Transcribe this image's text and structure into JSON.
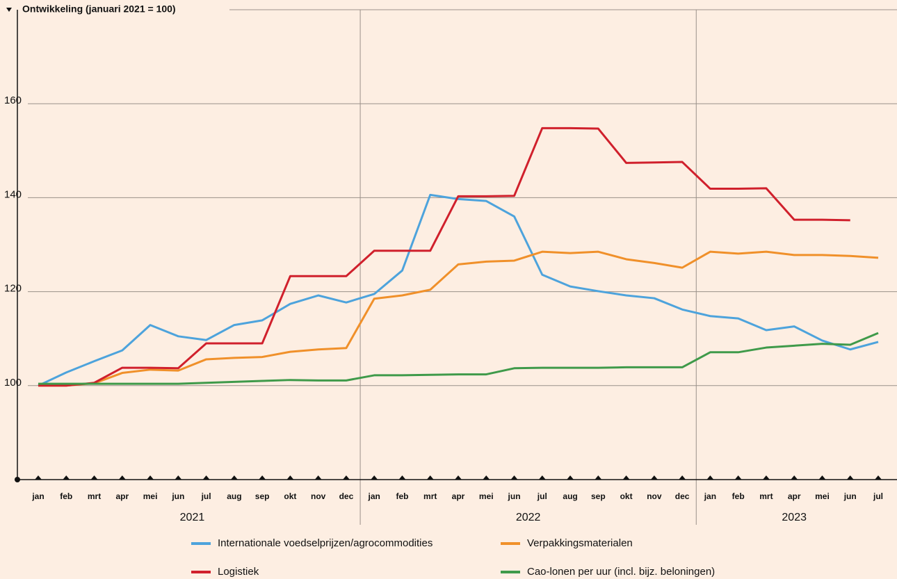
{
  "chart_data": {
    "type": "line",
    "title": "Ontwikkeling (januari 2021 = 100)",
    "categories": [
      "jan",
      "feb",
      "mrt",
      "apr",
      "mei",
      "jun",
      "jul",
      "aug",
      "sep",
      "okt",
      "nov",
      "dec",
      "jan",
      "feb",
      "mrt",
      "apr",
      "mei",
      "jun",
      "jul",
      "aug",
      "sep",
      "okt",
      "nov",
      "dec",
      "jan",
      "feb",
      "mrt",
      "apr",
      "mei",
      "jun",
      "jul"
    ],
    "years": [
      "2021",
      "2022",
      "2023"
    ],
    "ylim": [
      80,
      180
    ],
    "yticks": [
      100,
      120,
      140,
      160
    ],
    "grid": true,
    "series": [
      {
        "name": "Internationale voedselprijzen/agrocommodities",
        "color": "#4da3dc",
        "values": [
          100,
          102.8,
          105.2,
          107.5,
          112.9,
          110.5,
          109.7,
          112.9,
          113.9,
          117.4,
          119.2,
          117.7,
          119.5,
          124.5,
          140.6,
          139.7,
          139.3,
          136,
          123.6,
          121.1,
          120.1,
          119.2,
          118.6,
          116.2,
          114.8,
          114.3,
          111.8,
          112.6,
          109.6,
          107.7,
          109.3
        ]
      },
      {
        "name": "Verpakkingsmaterialen",
        "color": "#f0902a",
        "values": [
          100,
          100,
          100.5,
          102.7,
          103.4,
          103.2,
          105.6,
          105.9,
          106.1,
          107.2,
          107.7,
          108,
          118.5,
          119.2,
          120.4,
          125.8,
          126.4,
          126.6,
          128.5,
          128.2,
          128.5,
          126.9,
          126.1,
          125.1,
          128.5,
          128.1,
          128.5,
          127.8,
          127.8,
          127.6,
          127.2
        ]
      },
      {
        "name": "Logistiek",
        "color": "#d0202c",
        "values": [
          100,
          100,
          100.6,
          103.8,
          103.8,
          103.7,
          109,
          109,
          109,
          123.3,
          123.3,
          123.3,
          128.7,
          128.7,
          128.7,
          140.3,
          140.3,
          140.4,
          154.8,
          154.8,
          154.7,
          147.4,
          147.5,
          147.6,
          141.9,
          141.9,
          142,
          135.3,
          135.3,
          135.2,
          null
        ]
      },
      {
        "name": "Cao-lonen per uur (incl. bijz. beloningen)",
        "color": "#3f9a4a",
        "values": [
          100.4,
          100.4,
          100.4,
          100.4,
          100.4,
          100.4,
          100.6,
          100.8,
          101,
          101.2,
          101.1,
          101.1,
          102.2,
          102.2,
          102.3,
          102.4,
          102.4,
          103.7,
          103.8,
          103.8,
          103.8,
          103.9,
          103.9,
          103.9,
          107.1,
          107.1,
          108.1,
          108.5,
          108.9,
          108.7,
          111.2
        ]
      }
    ]
  }
}
